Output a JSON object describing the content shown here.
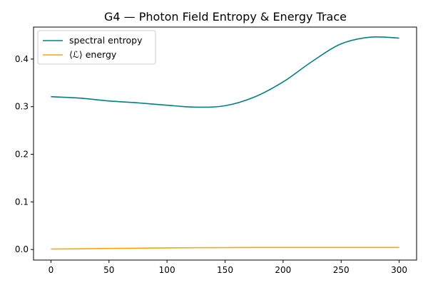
{
  "chart_data": {
    "type": "line",
    "title": "G4 — Photon Field Entropy & Energy Trace",
    "xlabel": "",
    "ylabel": "",
    "xlim": [
      -15,
      315
    ],
    "ylim": [
      -0.0222,
      0.4672
    ],
    "xticks": [
      0,
      50,
      100,
      150,
      200,
      250,
      300
    ],
    "yticks": [
      0.0,
      0.1,
      0.2,
      0.3,
      0.4
    ],
    "ytick_labels": [
      "0.0",
      "0.1",
      "0.2",
      "0.3",
      "0.4"
    ],
    "grid": false,
    "legend_position": "top-left",
    "x": [
      0,
      25,
      50,
      75,
      100,
      125,
      150,
      175,
      200,
      225,
      250,
      275,
      300
    ],
    "series": [
      {
        "name": "spectral entropy",
        "color": "#008080",
        "values": [
          0.321,
          0.318,
          0.312,
          0.308,
          0.303,
          0.299,
          0.302,
          0.32,
          0.352,
          0.395,
          0.432,
          0.446,
          0.444
        ]
      },
      {
        "name": "⟨ℒ⟩ energy",
        "color": "#FFA500",
        "values": [
          0.001,
          0.0015,
          0.0022,
          0.0028,
          0.0034,
          0.0038,
          0.004,
          0.0042,
          0.0043,
          0.0043,
          0.0043,
          0.0043,
          0.0043
        ]
      }
    ]
  }
}
